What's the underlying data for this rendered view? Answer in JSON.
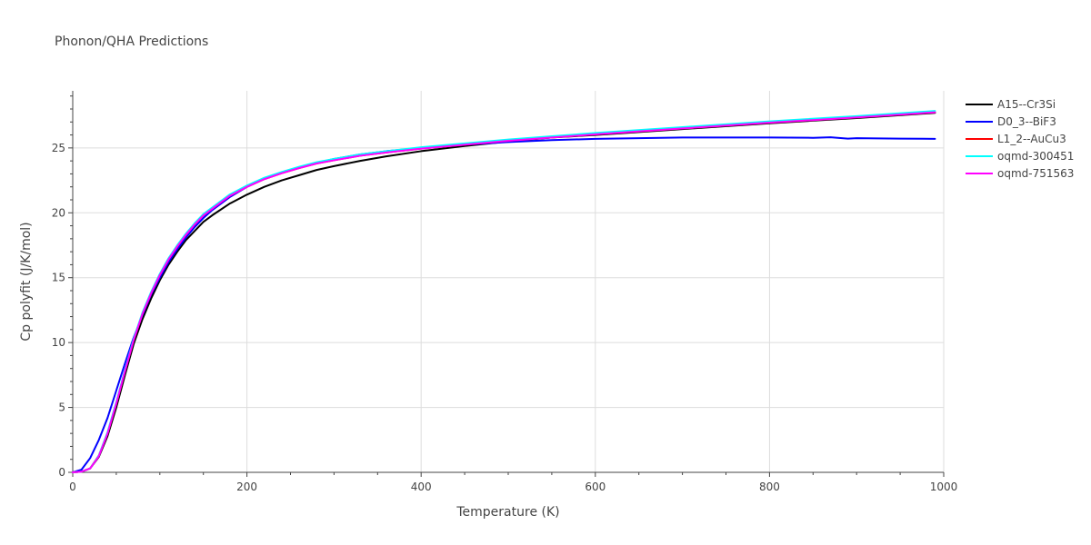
{
  "chart_data": {
    "type": "line",
    "title": "Phonon/QHA Predictions",
    "xlabel": "Temperature (K)",
    "ylabel": "Cp polyfit (J/K/mol)",
    "xlim": [
      0,
      1000
    ],
    "ylim": [
      0,
      29.4
    ],
    "xticks": [
      0,
      200,
      400,
      600,
      800,
      1000
    ],
    "yticks": [
      0,
      5,
      10,
      15,
      20,
      25
    ],
    "xtick_labels": [
      "0",
      "200",
      "400",
      "600",
      "800",
      "1000"
    ],
    "ytick_labels": [
      "0",
      "5",
      "10",
      "15",
      "20",
      "25"
    ],
    "grid": true,
    "legend_position": "top-right",
    "series": [
      {
        "name": "A15--Cr3Si",
        "color": "#000000",
        "x": [
          0,
          10,
          20,
          30,
          40,
          50,
          60,
          70,
          80,
          90,
          100,
          110,
          120,
          130,
          140,
          150,
          160,
          180,
          200,
          220,
          240,
          260,
          280,
          300,
          330,
          360,
          400,
          450,
          500,
          550,
          600,
          700,
          800,
          900,
          990
        ],
        "y": [
          0,
          0.05,
          0.3,
          1.2,
          2.8,
          5.0,
          7.5,
          9.9,
          11.8,
          13.4,
          14.8,
          16.0,
          17.0,
          17.9,
          18.6,
          19.3,
          19.8,
          20.7,
          21.4,
          22.0,
          22.5,
          22.9,
          23.3,
          23.6,
          24.0,
          24.35,
          24.75,
          25.15,
          25.5,
          25.8,
          26.0,
          26.45,
          26.9,
          27.3,
          27.7
        ]
      },
      {
        "name": "D0_3--BiF3",
        "color": "#0000ff",
        "x": [
          0,
          10,
          20,
          30,
          40,
          50,
          60,
          70,
          80,
          90,
          100,
          110,
          120,
          130,
          140,
          150,
          160,
          180,
          200,
          220,
          240,
          260,
          280,
          300,
          330,
          360,
          400,
          450,
          500,
          550,
          600,
          700,
          800,
          850,
          870,
          890,
          900,
          950,
          990
        ],
        "y": [
          0,
          0.2,
          1.1,
          2.5,
          4.2,
          6.3,
          8.4,
          10.4,
          12.1,
          13.7,
          15.0,
          16.2,
          17.2,
          18.1,
          18.9,
          19.6,
          20.2,
          21.2,
          22.0,
          22.6,
          23.1,
          23.5,
          23.85,
          24.15,
          24.5,
          24.75,
          25.0,
          25.25,
          25.45,
          25.6,
          25.7,
          25.8,
          25.8,
          25.78,
          25.82,
          25.72,
          25.75,
          25.72,
          25.7
        ]
      },
      {
        "name": "L1_2--AuCu3",
        "color": "#ff0000",
        "x": [
          0,
          10,
          20,
          30,
          40,
          50,
          60,
          70,
          80,
          90,
          100,
          110,
          120,
          130,
          140,
          150,
          160,
          180,
          200,
          220,
          240,
          260,
          280,
          300,
          330,
          360,
          400,
          450,
          500,
          550,
          600,
          700,
          800,
          900,
          990
        ],
        "y": [
          0,
          0.05,
          0.3,
          1.3,
          3.0,
          5.3,
          7.8,
          10.2,
          12.2,
          13.8,
          15.2,
          16.4,
          17.4,
          18.3,
          19.1,
          19.8,
          20.3,
          21.3,
          22.0,
          22.6,
          23.05,
          23.45,
          23.8,
          24.05,
          24.4,
          24.65,
          24.95,
          25.25,
          25.55,
          25.8,
          26.05,
          26.5,
          26.95,
          27.35,
          27.75
        ]
      },
      {
        "name": "oqmd-300451",
        "color": "#00ffff",
        "x": [
          0,
          10,
          20,
          30,
          40,
          50,
          60,
          70,
          80,
          90,
          100,
          110,
          120,
          130,
          140,
          150,
          160,
          180,
          200,
          220,
          240,
          260,
          280,
          300,
          330,
          360,
          400,
          450,
          500,
          550,
          600,
          700,
          800,
          900,
          990
        ],
        "y": [
          0,
          0.05,
          0.3,
          1.3,
          3.1,
          5.4,
          7.9,
          10.3,
          12.3,
          13.9,
          15.3,
          16.5,
          17.5,
          18.4,
          19.2,
          19.9,
          20.4,
          21.4,
          22.1,
          22.7,
          23.15,
          23.55,
          23.9,
          24.15,
          24.5,
          24.75,
          25.05,
          25.35,
          25.65,
          25.9,
          26.15,
          26.6,
          27.05,
          27.45,
          27.85
        ]
      },
      {
        "name": "oqmd-751563",
        "color": "#ff00ff",
        "x": [
          0,
          10,
          20,
          30,
          40,
          50,
          60,
          70,
          80,
          90,
          100,
          110,
          120,
          130,
          140,
          150,
          160,
          180,
          200,
          220,
          240,
          260,
          280,
          300,
          330,
          360,
          400,
          450,
          500,
          550,
          600,
          700,
          800,
          900,
          990
        ],
        "y": [
          0,
          0.05,
          0.3,
          1.25,
          3.0,
          5.3,
          7.8,
          10.2,
          12.2,
          13.8,
          15.2,
          16.4,
          17.4,
          18.3,
          19.1,
          19.8,
          20.3,
          21.3,
          22.0,
          22.6,
          23.05,
          23.45,
          23.8,
          24.05,
          24.4,
          24.65,
          24.95,
          25.25,
          25.55,
          25.8,
          26.05,
          26.5,
          26.95,
          27.35,
          27.75
        ]
      }
    ]
  }
}
